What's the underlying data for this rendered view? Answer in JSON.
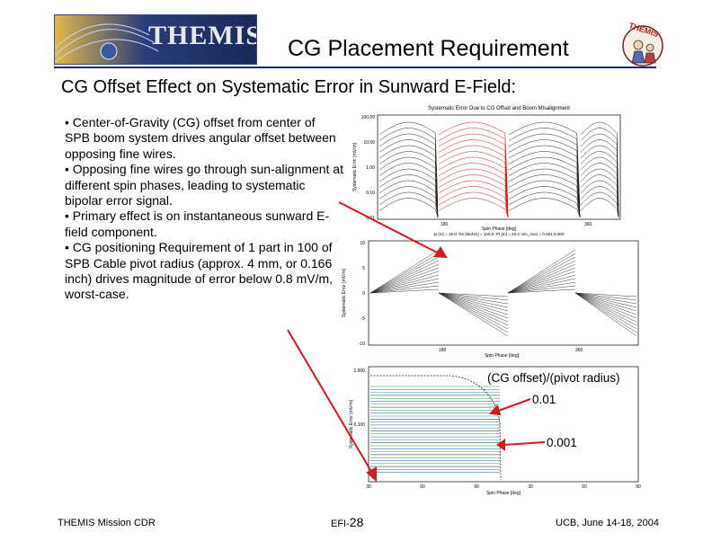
{
  "slide": {
    "title": "CG Placement Requirement",
    "subtitle": "CG Offset Effect on Systematic Error in Sunward E-Field:",
    "logo_text": "THEMIS",
    "badge_text": "THEMIS",
    "bullets": [
      "• Center-of-Gravity (CG) offset from center of SPB boom system drives angular offset between opposing fine wires.",
      "• Opposing fine wires go through sun-alignment at different spin phases, leading to systematic bipolar error signal.",
      "• Primary effect is on instantaneous sunward E-field component.",
      "• CG positioning Requirement of 1 part in 100 of SPB Cable pivot radius (approx. 4 mm, or 0.166 inch) drives magnitude of error below 0.8 mV/m, worst-case."
    ]
  },
  "annotations": {
    "ratio_label": "(CG offset)/(pivot radius)",
    "level_1": "0.01",
    "level_2": "0.001"
  },
  "footer": {
    "left": "THEMIS Mission CDR",
    "center_prefix": "EFI-",
    "center_number": "28",
    "right": "UCB, June 14-18, 2004"
  },
  "chart_data": [
    {
      "type": "line",
      "title": "Systematic Error Due to CG Offset and Boom Misalignment",
      "xlabel": "Spin Phase [deg]",
      "ylabel": "Systematic Error [mV/m]",
      "y_scale": "log",
      "x_ticks": [
        "180",
        "360"
      ],
      "y_ticks": [
        "100.00",
        "10.00",
        "1.00",
        "0.10",
        "0.01"
      ],
      "params_line": "lp [m] = 19.0, Rs [Mohm] = 100.0, PI [m] = 40.2 min_max = 0.001:0.000",
      "series_colors": [
        "#222222",
        "#d81b1b"
      ]
    },
    {
      "type": "line",
      "xlabel": "Spin Phase [deg]",
      "ylabel": "Systematic Error [mV/m]",
      "y_ticks": [
        "10",
        "5",
        "0",
        "-5",
        "-10"
      ],
      "x_ticks": [
        "180",
        "360"
      ],
      "ylim": [
        -10,
        10
      ]
    },
    {
      "type": "line",
      "xlabel": "Spin Phase [deg]",
      "ylabel": "Systematic Error [mV/m]",
      "y_scale": "log",
      "y_ticks": [
        "1.000",
        "0.100"
      ],
      "x_ticks": [
        "30",
        "60",
        "90",
        "30",
        "60",
        "90"
      ]
    }
  ]
}
